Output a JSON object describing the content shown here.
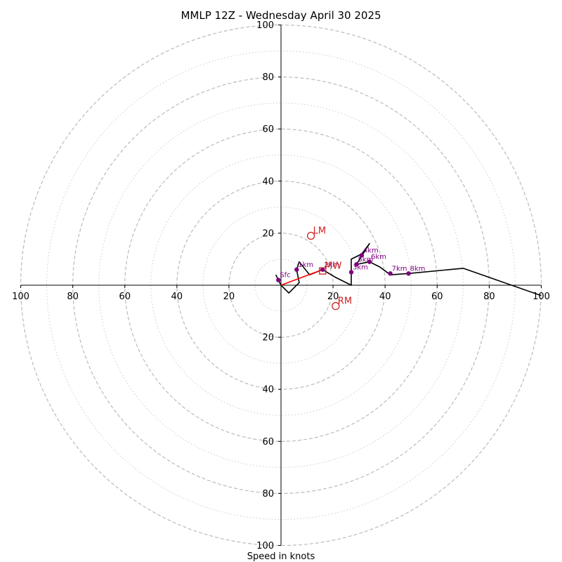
{
  "chart_data": {
    "type": "scatter",
    "subtype": "hodograph",
    "title": "MMLP 12Z - Wednesday April 30 2025",
    "xlabel": "Speed in knots",
    "ylabel": "",
    "xlim": [
      -100,
      100
    ],
    "ylim": [
      -100,
      100
    ],
    "rings": {
      "dashed": [
        20,
        40,
        60,
        80,
        100
      ],
      "dotted": [
        10,
        30,
        50,
        70,
        90
      ]
    },
    "tick_labels": {
      "x_left": [
        "100",
        "80",
        "60",
        "40",
        "20"
      ],
      "x_right": [
        "20",
        "40",
        "60",
        "80",
        "100"
      ],
      "y_top": [
        "100",
        "80",
        "60",
        "40",
        "20"
      ],
      "y_bottom": [
        "20",
        "40",
        "60",
        "80",
        "100"
      ]
    },
    "tick_values": [
      100,
      80,
      60,
      40,
      20
    ],
    "profile": [
      {
        "u": -2,
        "v": 4
      },
      {
        "u": -1,
        "v": 2
      },
      {
        "u": 0,
        "v": 0
      },
      {
        "u": 3,
        "v": -3
      },
      {
        "u": 7,
        "v": 1
      },
      {
        "u": 6,
        "v": 6
      },
      {
        "u": 7,
        "v": 9
      },
      {
        "u": 11,
        "v": 4
      },
      {
        "u": 16,
        "v": 6
      },
      {
        "u": 21,
        "v": 3
      },
      {
        "u": 27,
        "v": 0
      },
      {
        "u": 27,
        "v": 5
      },
      {
        "u": 27,
        "v": 10
      },
      {
        "u": 31,
        "v": 12
      },
      {
        "u": 34,
        "v": 16
      },
      {
        "u": 29,
        "v": 8
      },
      {
        "u": 34,
        "v": 9
      },
      {
        "u": 38,
        "v": 7
      },
      {
        "u": 42,
        "v": 4
      },
      {
        "u": 49,
        "v": 4.5
      },
      {
        "u": 70,
        "v": 6.5
      },
      {
        "u": 100,
        "v": -4
      }
    ],
    "height_markers": [
      {
        "label": "Sfc",
        "u": -1,
        "v": 2
      },
      {
        "label": "1km",
        "u": 6,
        "v": 6
      },
      {
        "label": "2km",
        "u": 16,
        "v": 6
      },
      {
        "label": "3km",
        "u": 27,
        "v": 5
      },
      {
        "label": "4km",
        "u": 31,
        "v": 11.5
      },
      {
        "label": "5km",
        "u": 29,
        "v": 8
      },
      {
        "label": "6km",
        "u": 34,
        "v": 9
      },
      {
        "label": "7km",
        "u": 42,
        "v": 4.5
      },
      {
        "label": "8km",
        "u": 49,
        "v": 4.5
      }
    ],
    "shear_vector": {
      "from": {
        "u": 0,
        "v": 0
      },
      "to": {
        "u": 16,
        "v": 6
      }
    },
    "motion_markers": [
      {
        "label": "LM",
        "u": 11.5,
        "v": 19,
        "shape": "circle"
      },
      {
        "label": "MW",
        "u": 16,
        "v": 5.5,
        "shape": "square"
      },
      {
        "label": "RM",
        "u": 21,
        "v": -8,
        "shape": "circle"
      }
    ],
    "colors": {
      "profile": "#000000",
      "height_markers": "#800080",
      "shear_vector": "#ff0000",
      "motion_markers": "#cc1f1f",
      "rings": "#bbbbbb",
      "axes": "#000000"
    },
    "grid": true,
    "legend": "none"
  }
}
